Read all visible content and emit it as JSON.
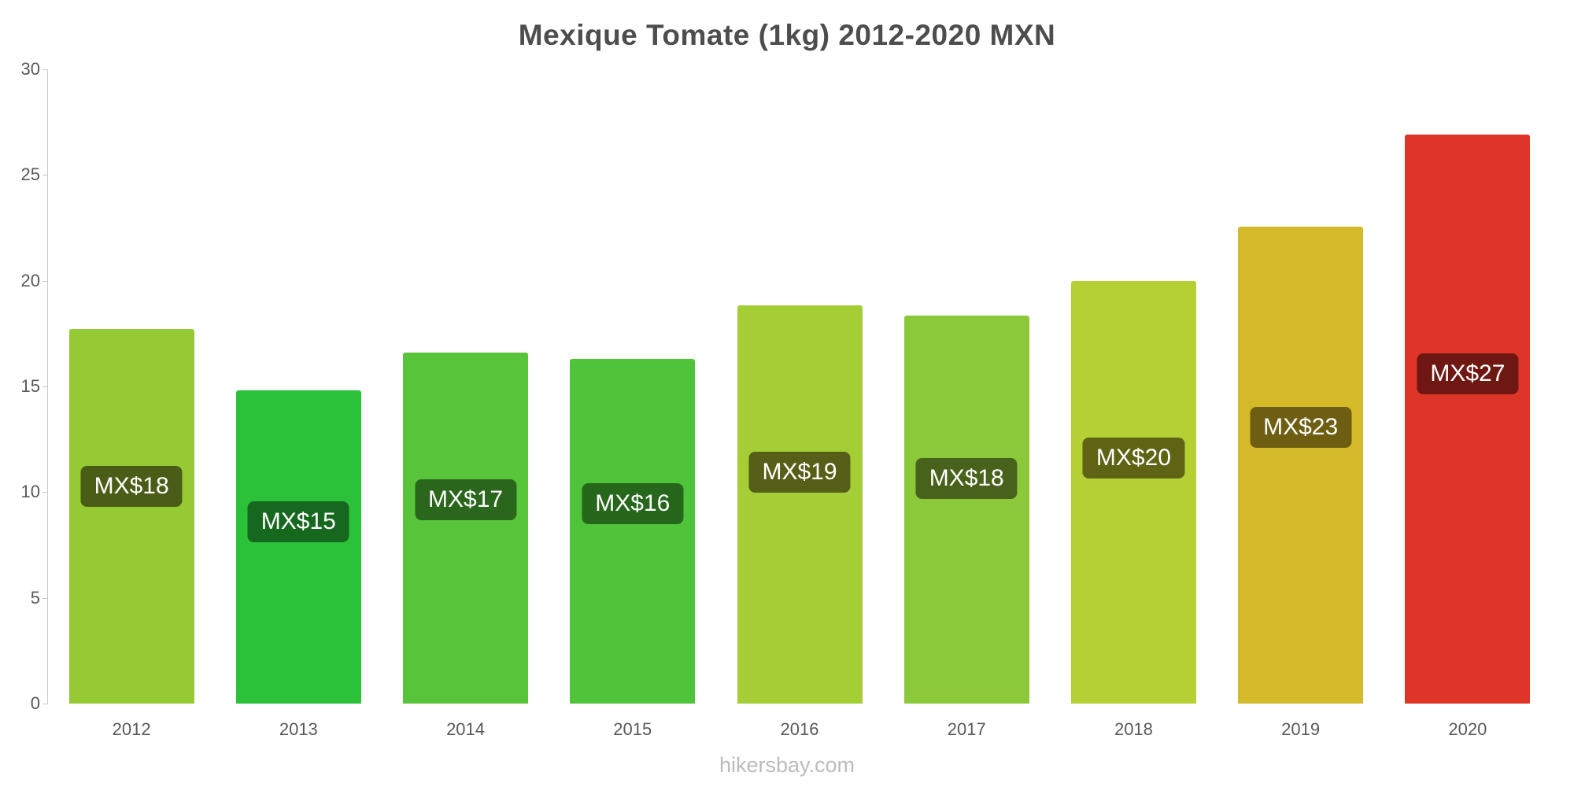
{
  "header": {
    "title": "Mexique Tomate (1kg) 2012-2020 MXN"
  },
  "footer": {
    "text": "hikersbay.com"
  },
  "chart_data": {
    "type": "bar",
    "title": "Mexique Tomate (1kg) 2012-2020 MXN",
    "categories": [
      "2012",
      "2013",
      "2014",
      "2015",
      "2016",
      "2017",
      "2018",
      "2019",
      "2020"
    ],
    "values": [
      17.7,
      14.8,
      16.6,
      16.3,
      18.85,
      18.35,
      20.0,
      22.55,
      26.9
    ],
    "labels": [
      "MX$18",
      "MX$15",
      "MX$17",
      "MX$16",
      "MX$19",
      "MX$18",
      "MX$20",
      "MX$23",
      "MX$27"
    ],
    "bar_colors": [
      "#96ca35",
      "#2bc23a",
      "#57c43a",
      "#4fc33a",
      "#a4cd36",
      "#8cc93a",
      "#b4d034",
      "#d4ba2b",
      "#df3428"
    ],
    "label_bg_colors": [
      "#4a5d17",
      "#17681f",
      "#2a671c",
      "#27671c",
      "#565f17",
      "#49621b",
      "#5e6414",
      "#6e5e12",
      "#6f1712"
    ],
    "xlabel": "",
    "ylabel": "",
    "ylim": [
      0,
      30
    ],
    "yticks": [
      0,
      5,
      10,
      15,
      20,
      25,
      30
    ],
    "grid": false,
    "legend": false,
    "currency_prefix": "MX$",
    "unit": "1kg",
    "series_name": "Tomate"
  }
}
